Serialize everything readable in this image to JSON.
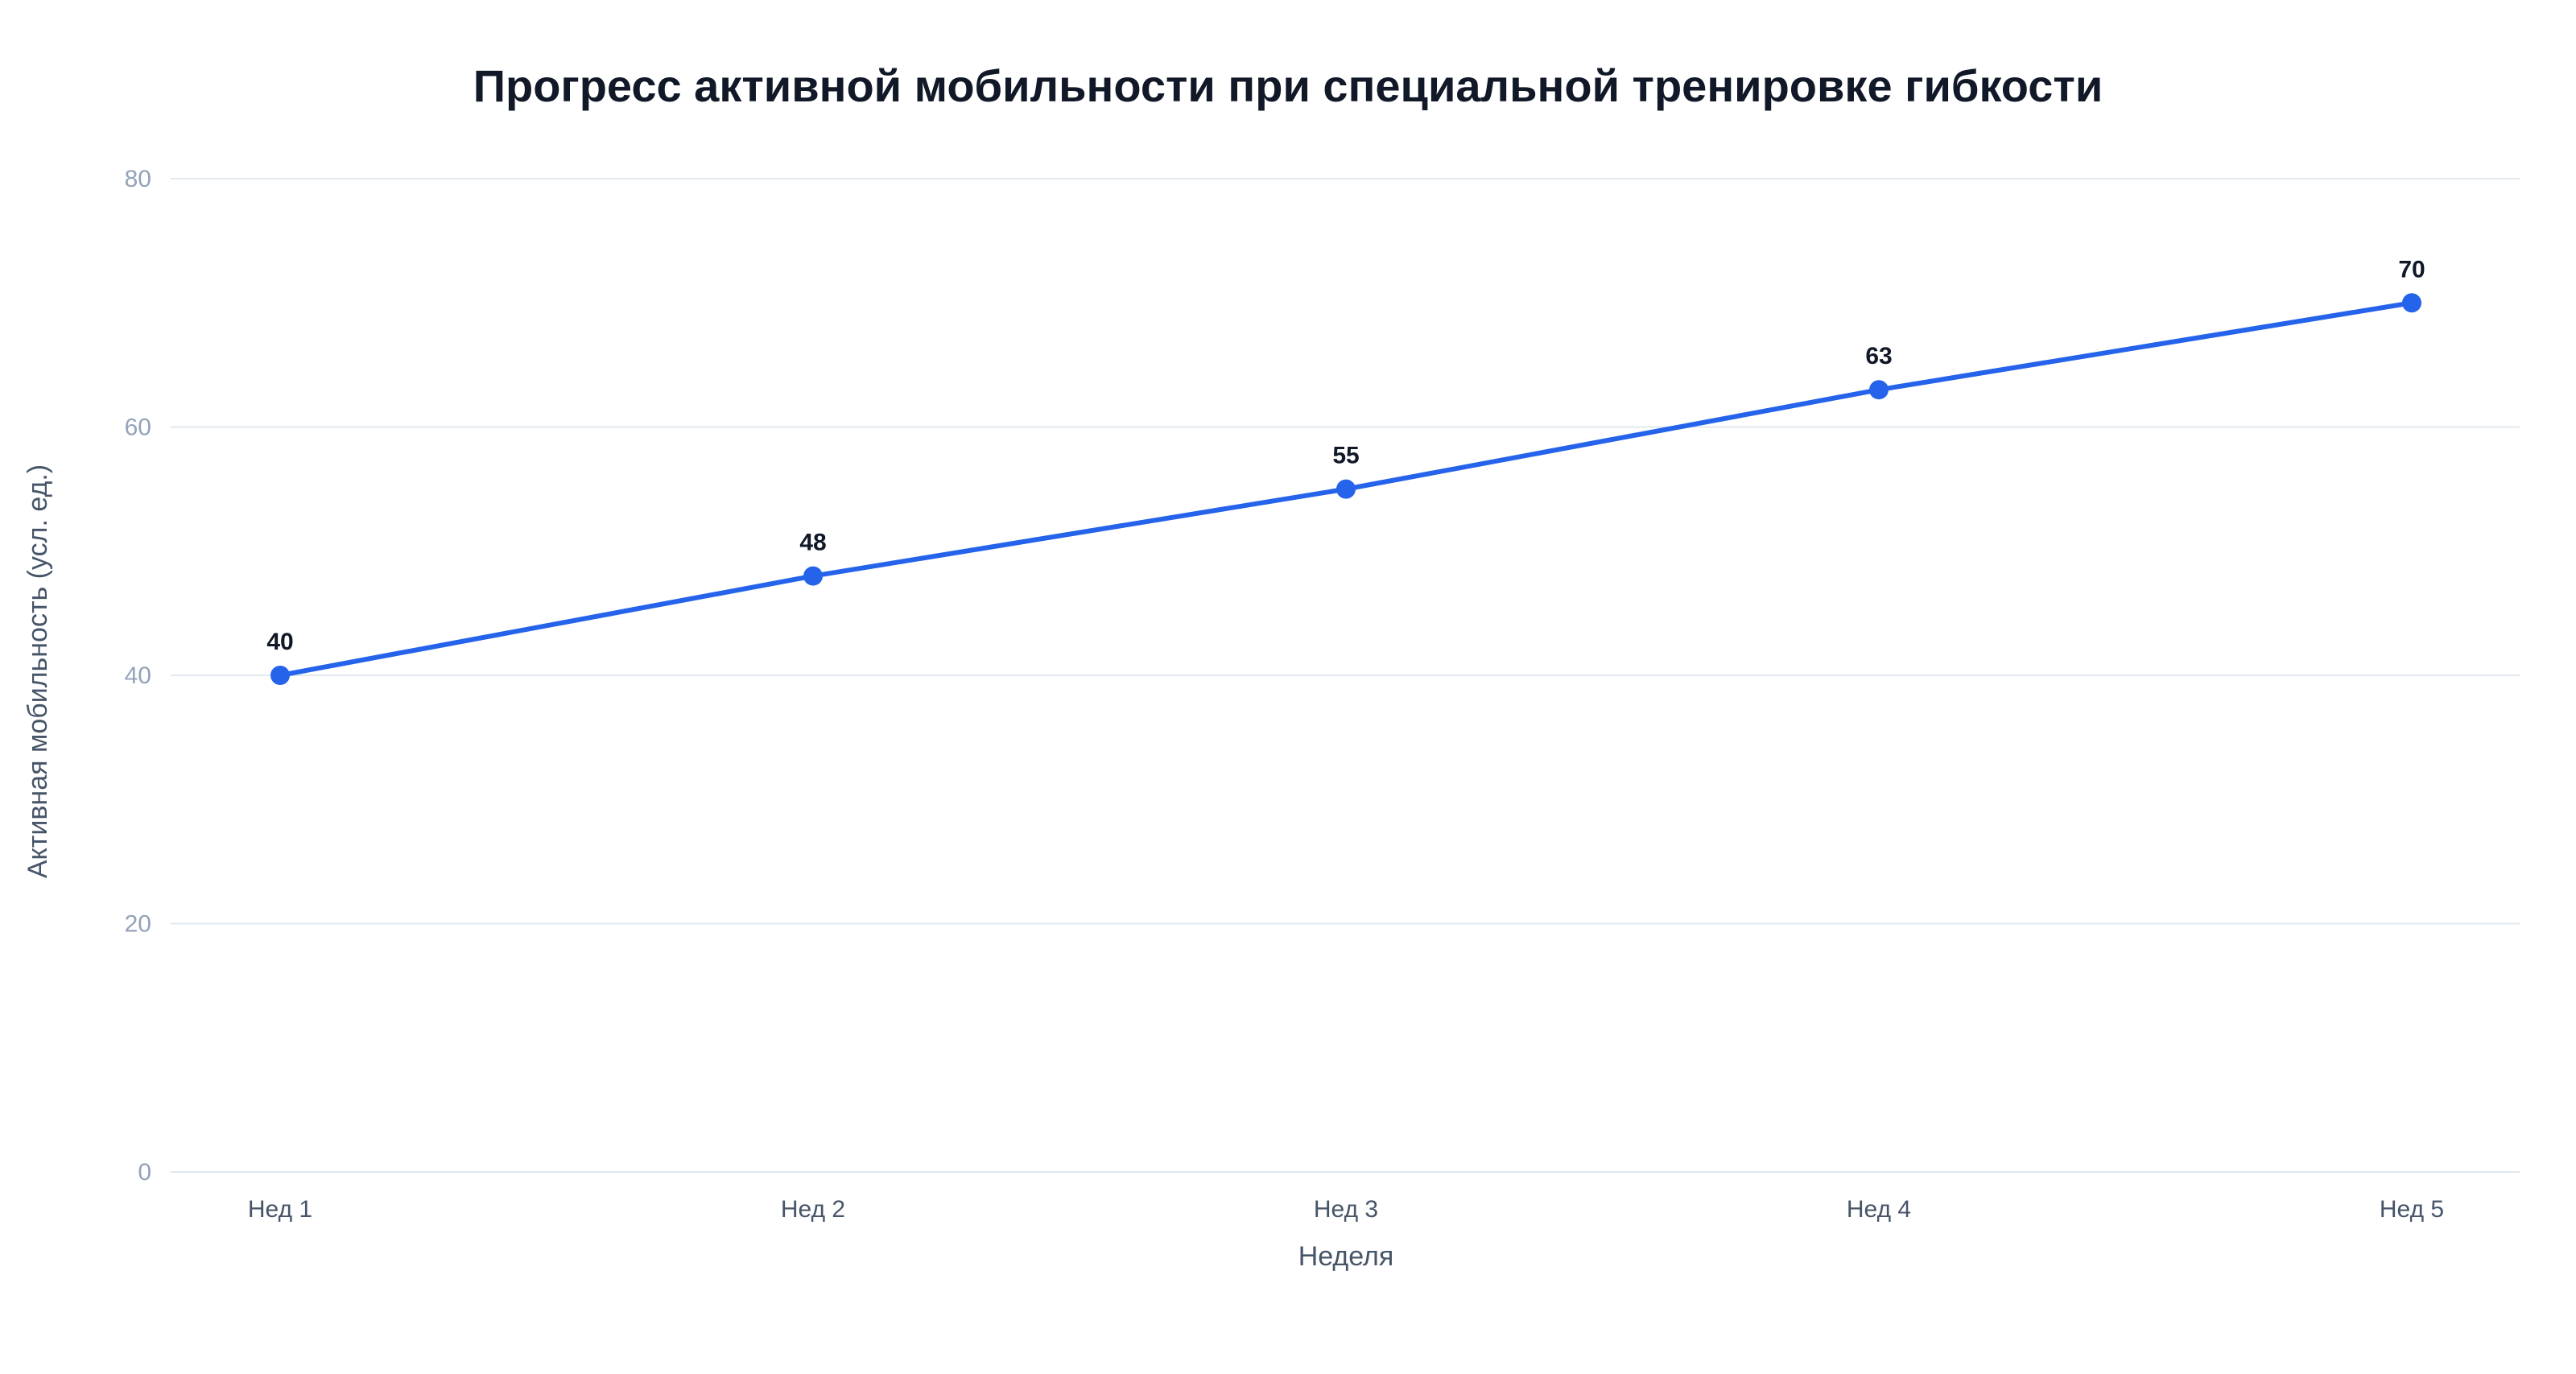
{
  "chart_data": {
    "type": "line",
    "title": "Прогресс активной мобильности при специальной тренировке гибкости",
    "xlabel": "Неделя",
    "ylabel": "Активная мобильность (усл. ед.)",
    "categories": [
      "Нед 1",
      "Нед 2",
      "Нед 3",
      "Нед 4",
      "Нед 5"
    ],
    "series": [
      {
        "values": [
          40,
          48,
          55,
          63,
          70
        ],
        "color": "#2563eb"
      }
    ],
    "ylim": [
      0,
      80
    ],
    "yticks": [
      0,
      20,
      40,
      60,
      80
    ],
    "grid": true,
    "data_labels": true,
    "markers": true
  }
}
